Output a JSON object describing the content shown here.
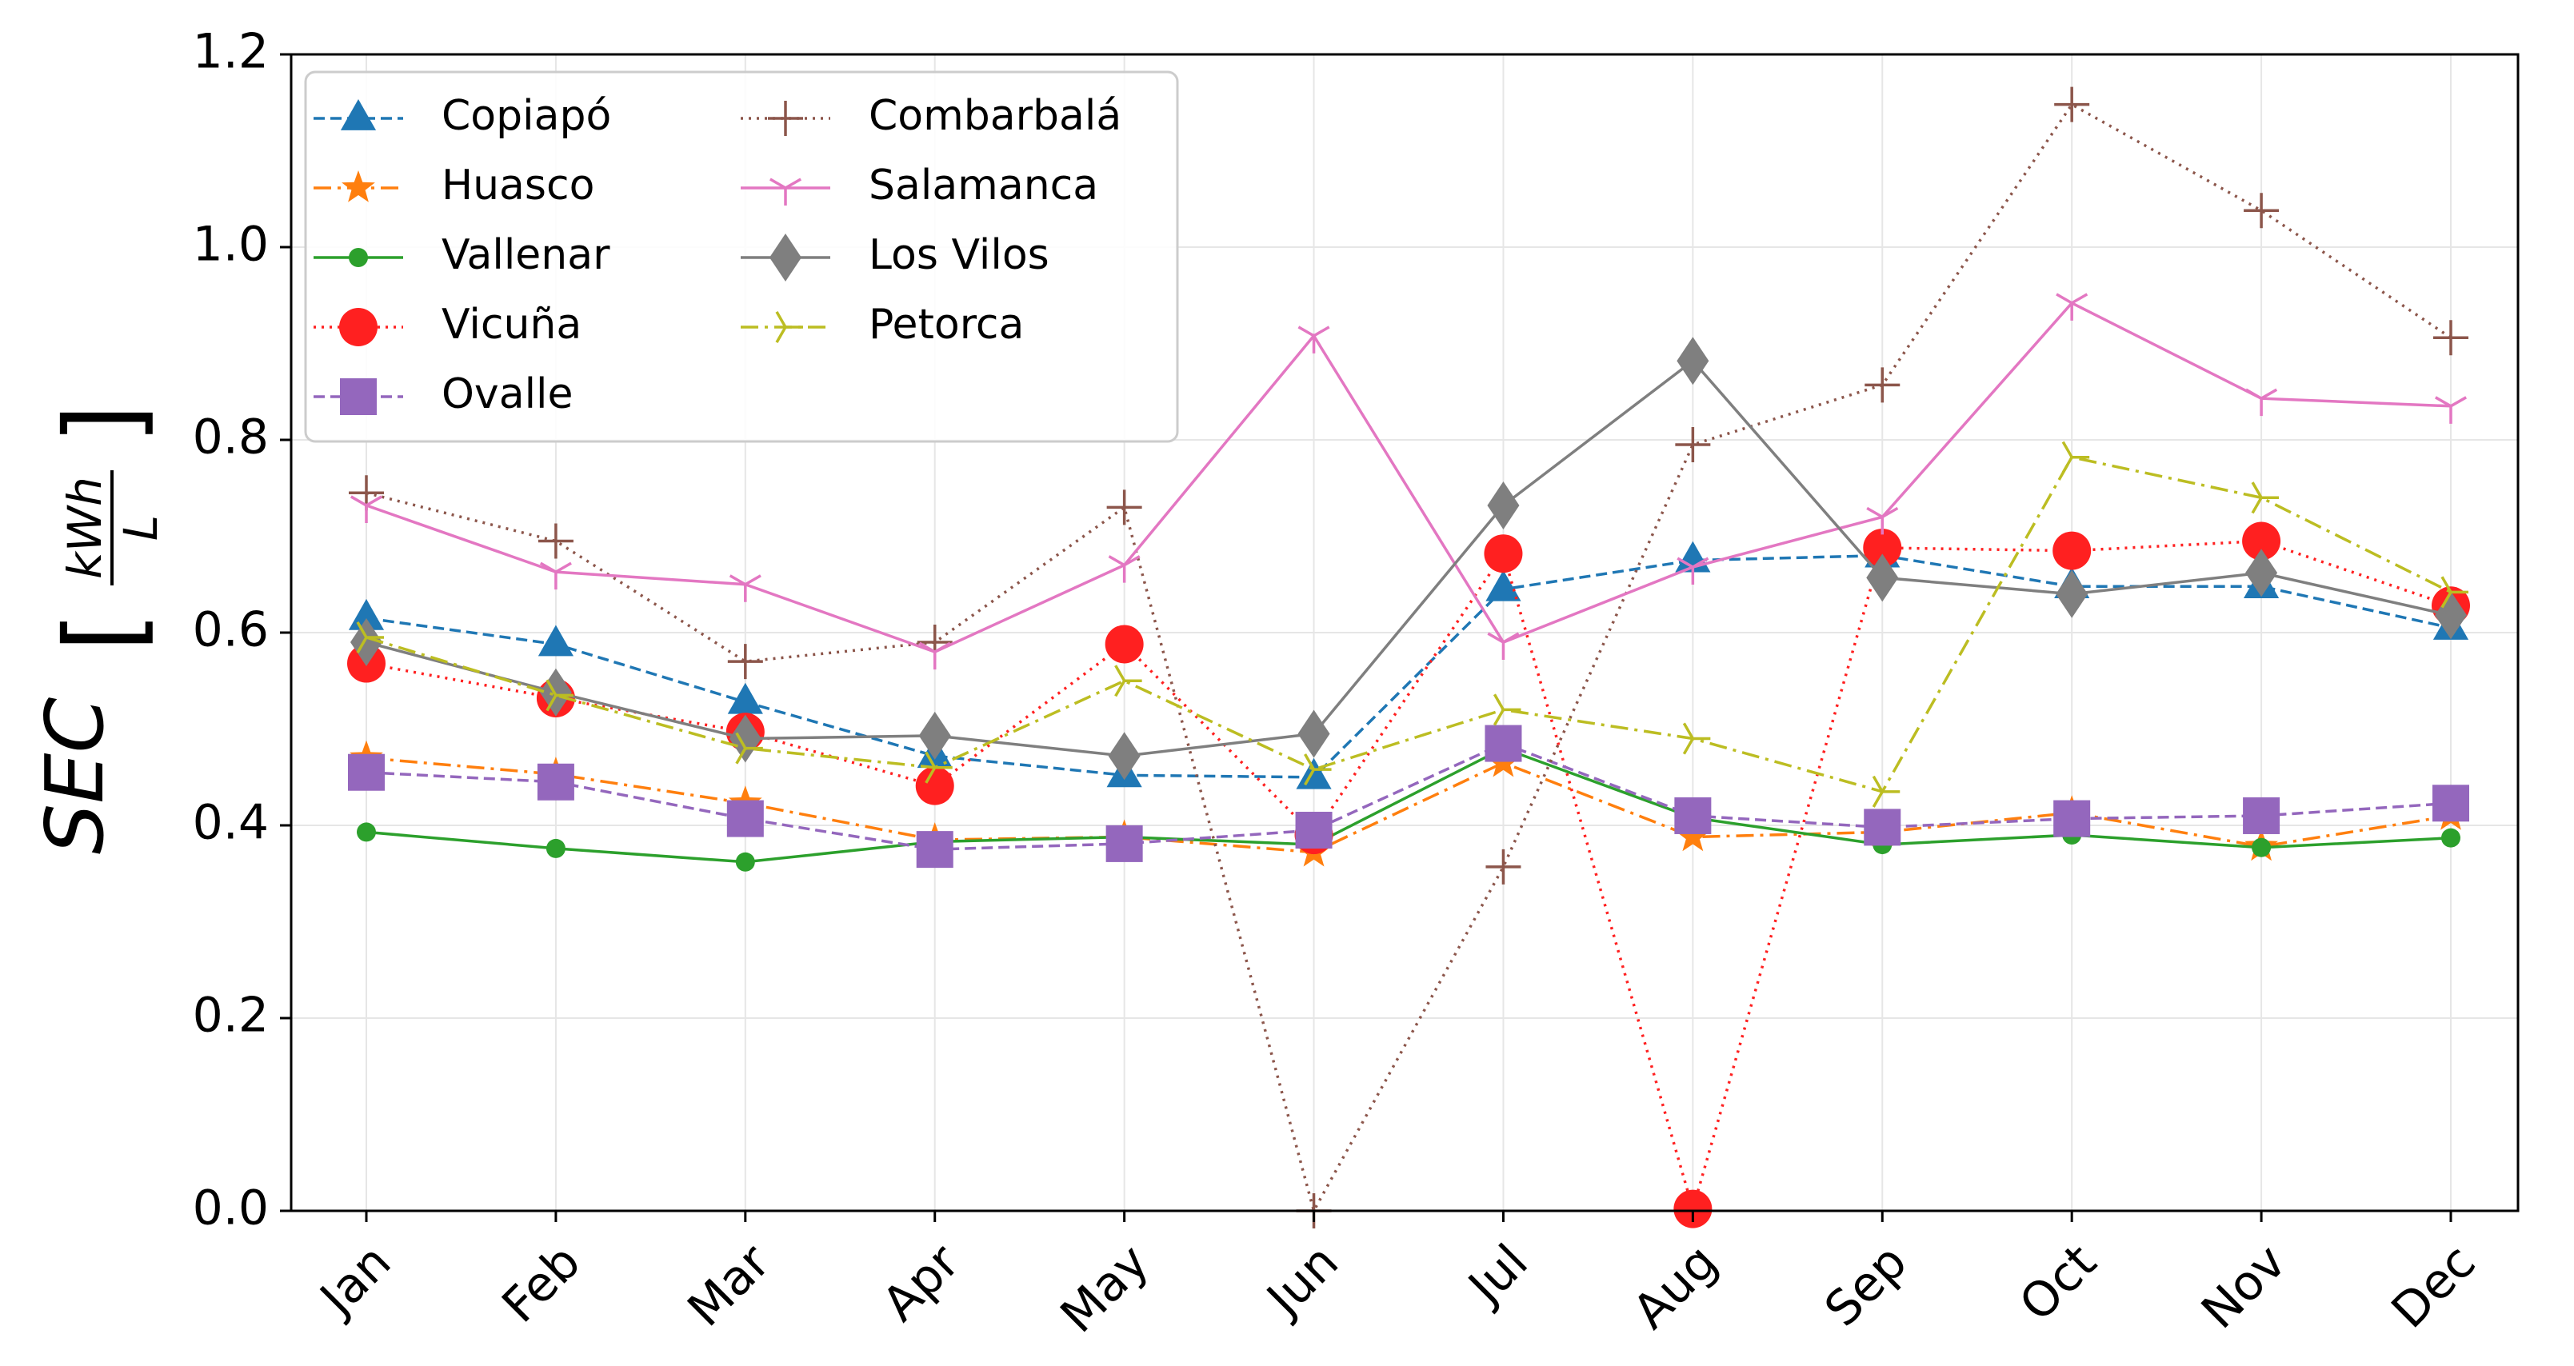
{
  "chart_data": {
    "type": "line",
    "title": "",
    "xlabel": "",
    "ylabel": "SEC",
    "ylabel_unit_numerator": "kWh",
    "ylabel_unit_denominator": "L",
    "ylim": [
      0.0,
      1.2
    ],
    "yticks": [
      "0.0",
      "0.2",
      "0.4",
      "0.6",
      "0.8",
      "1.0",
      "1.2"
    ],
    "grid": true,
    "legend_position": "top-left",
    "categories": [
      "Jan",
      "Feb",
      "Mar",
      "Apr",
      "May",
      "Jun",
      "Jul",
      "Aug",
      "Sep",
      "Oct",
      "Nov",
      "Dec"
    ],
    "series": [
      {
        "name": "Copiapó",
        "color": "#1f77b4",
        "marker": "triangle",
        "dash": "dashed",
        "values": [
          0.615,
          0.588,
          0.528,
          0.472,
          0.452,
          0.45,
          0.645,
          0.675,
          0.68,
          0.648,
          0.648,
          0.605
        ]
      },
      {
        "name": "Huasco",
        "color": "#ff7f0e",
        "marker": "star",
        "dash": "dashdot",
        "values": [
          0.47,
          0.453,
          0.423,
          0.385,
          0.388,
          0.372,
          0.465,
          0.388,
          0.393,
          0.413,
          0.378,
          0.41
        ]
      },
      {
        "name": "Vallenar",
        "color": "#2ca02c",
        "marker": "circle-small",
        "dash": "solid",
        "values": [
          0.393,
          0.376,
          0.362,
          0.383,
          0.388,
          0.38,
          0.48,
          0.408,
          0.38,
          0.39,
          0.377,
          0.387
        ]
      },
      {
        "name": "Vicuña",
        "color": "#ff2020",
        "marker": "circle-large",
        "dash": "dotted",
        "values": [
          0.568,
          0.532,
          0.497,
          0.441,
          0.588,
          0.39,
          0.682,
          0.002,
          0.688,
          0.685,
          0.695,
          0.628
        ]
      },
      {
        "name": "Ovalle",
        "color": "#9467bd",
        "marker": "square",
        "dash": "dashed",
        "values": [
          0.455,
          0.445,
          0.407,
          0.375,
          0.381,
          0.395,
          0.485,
          0.41,
          0.398,
          0.407,
          0.41,
          0.423
        ]
      },
      {
        "name": "Combarbalá",
        "color": "#8c564b",
        "marker": "plus",
        "dash": "dotted",
        "values": [
          0.745,
          0.695,
          0.57,
          0.59,
          0.73,
          0.0,
          0.357,
          0.795,
          0.857,
          1.148,
          1.038,
          0.906
        ]
      },
      {
        "name": "Salamanca",
        "color": "#e377c2",
        "marker": "tri-down",
        "dash": "solid",
        "values": [
          0.732,
          0.663,
          0.65,
          0.58,
          0.67,
          0.908,
          0.59,
          0.668,
          0.72,
          0.942,
          0.843,
          0.835
        ]
      },
      {
        "name": "Los Vilos",
        "color": "#7f7f7f",
        "marker": "diamond",
        "dash": "solid",
        "values": [
          0.59,
          0.538,
          0.49,
          0.493,
          0.472,
          0.495,
          0.732,
          0.882,
          0.657,
          0.64,
          0.662,
          0.618
        ]
      },
      {
        "name": "Petorca",
        "color": "#bcbd22",
        "marker": "tri-right",
        "dash": "dashdot",
        "values": [
          0.595,
          0.535,
          0.48,
          0.46,
          0.55,
          0.458,
          0.52,
          0.49,
          0.435,
          0.782,
          0.74,
          0.642
        ]
      }
    ]
  }
}
